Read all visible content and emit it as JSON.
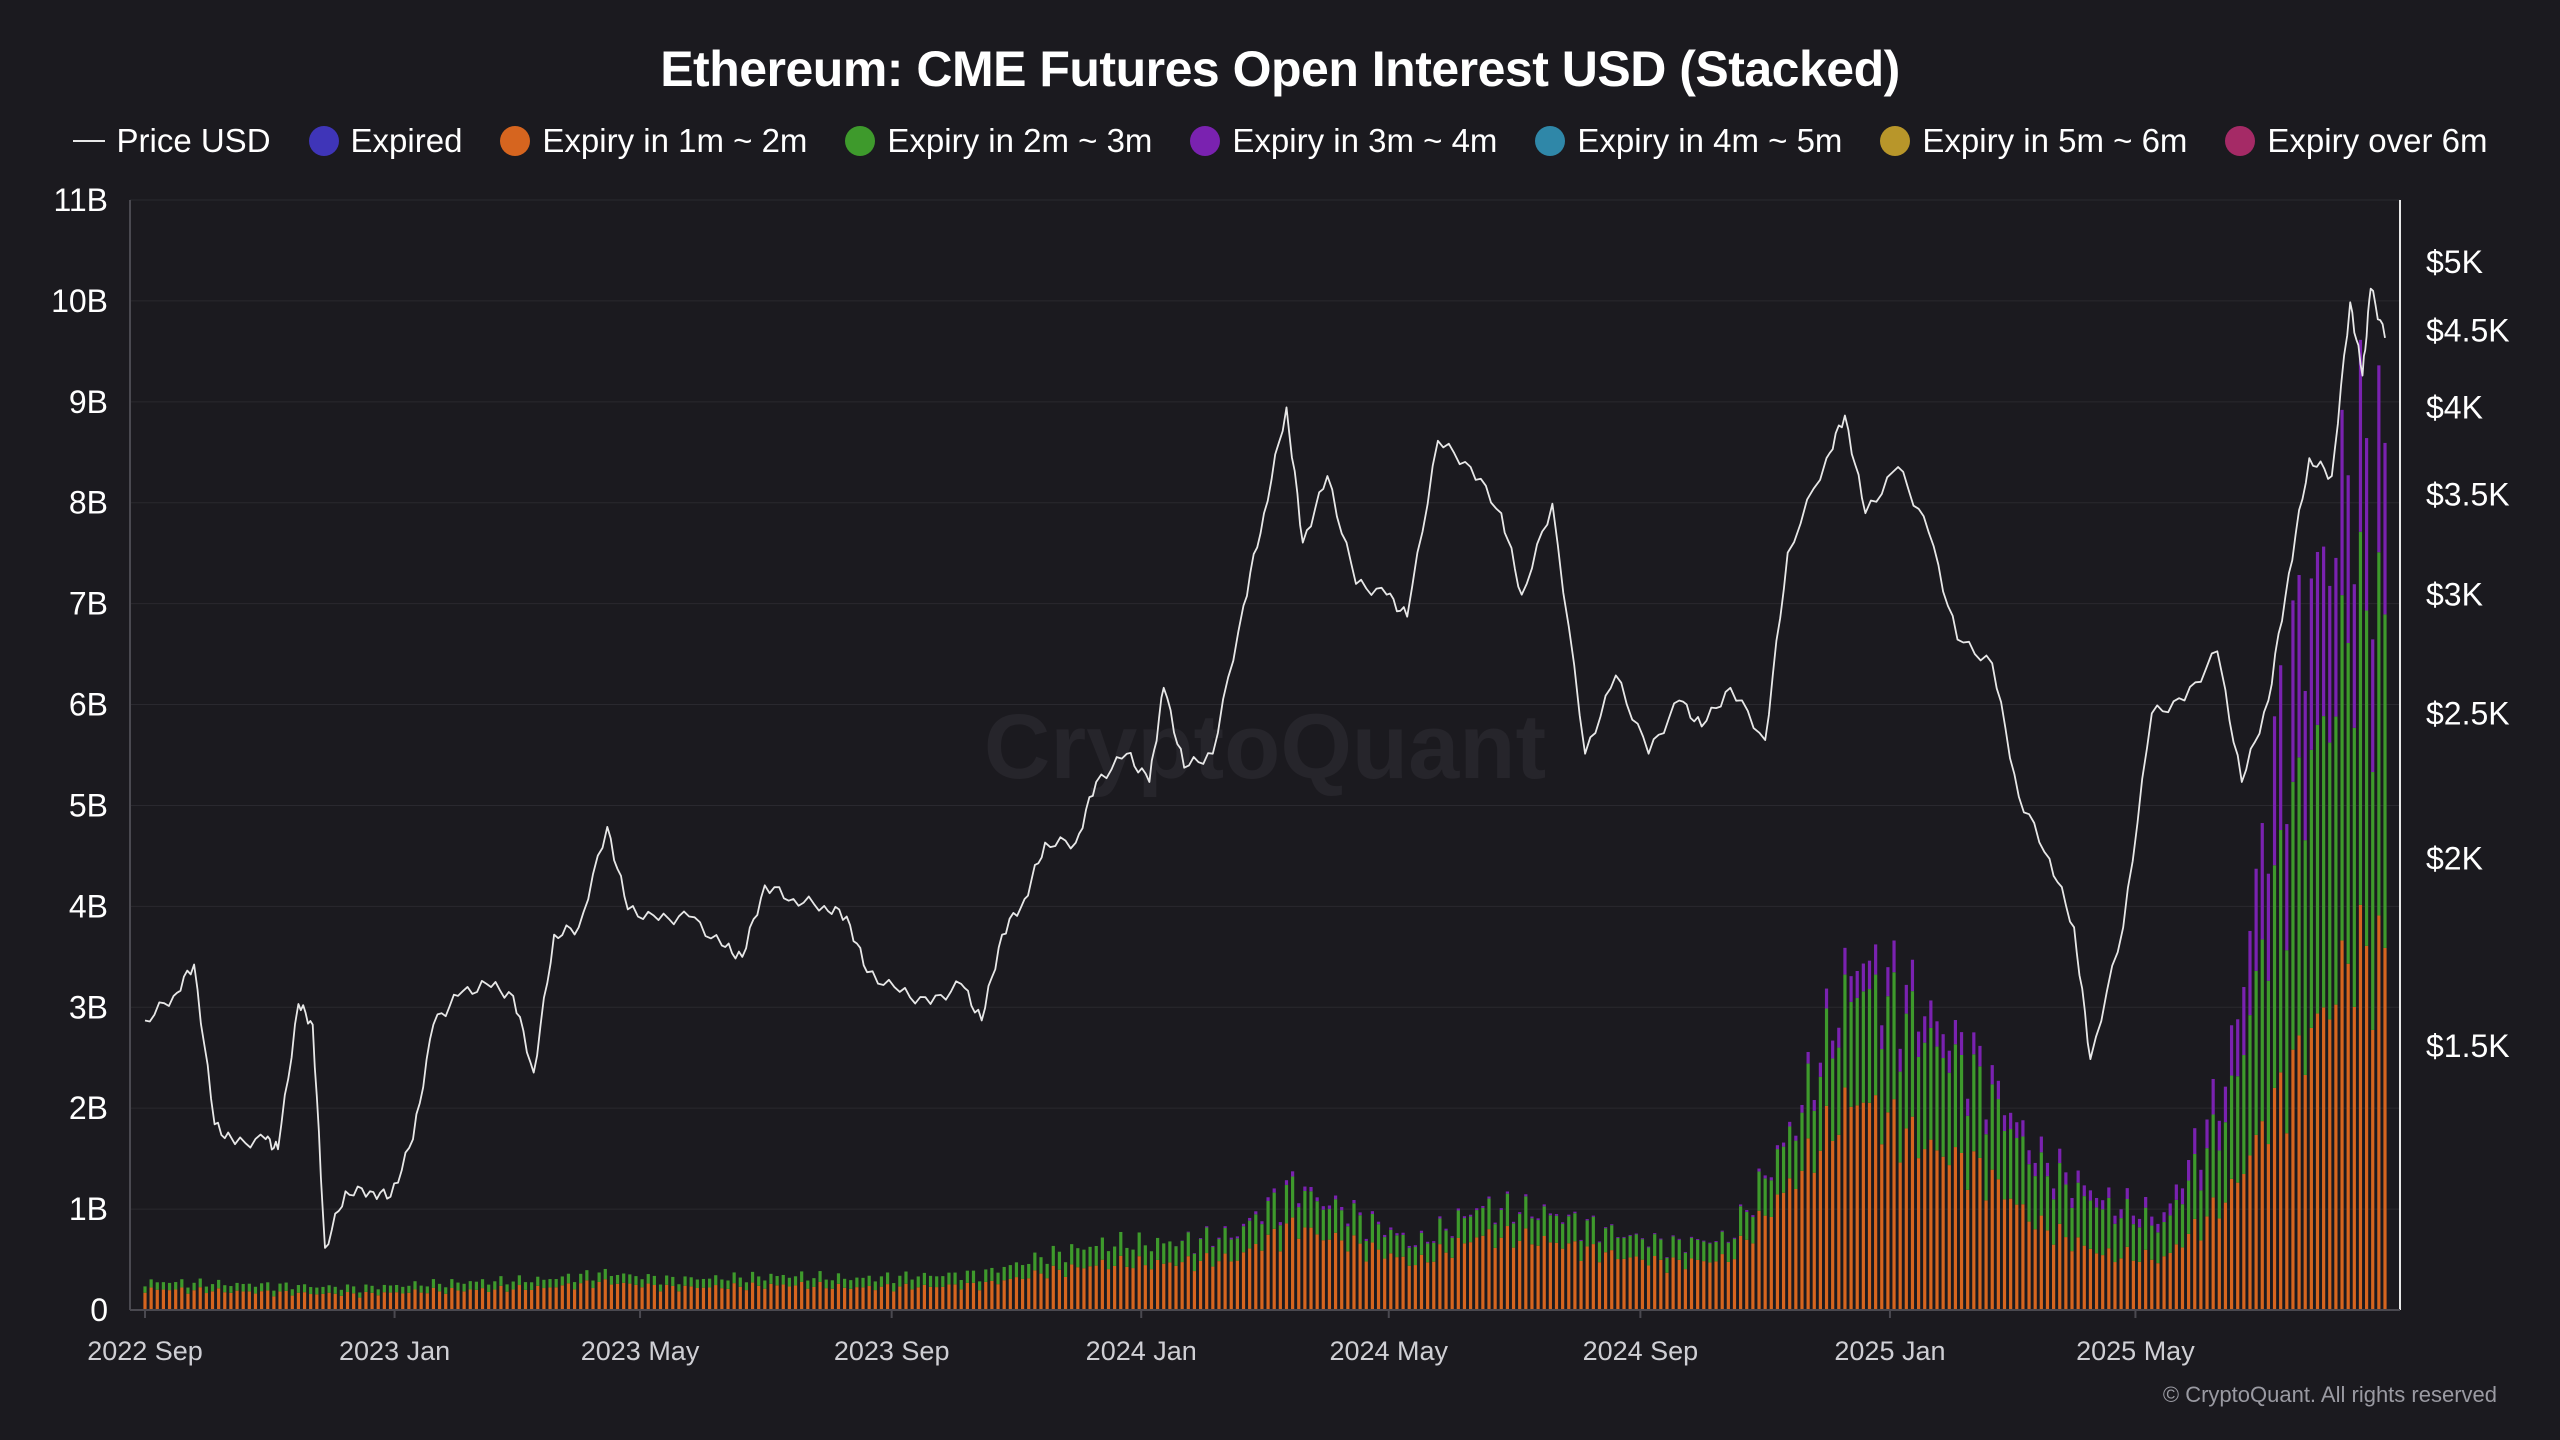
{
  "title": "Ethereum: CME Futures Open Interest USD (Stacked)",
  "legend": [
    {
      "label": "Price USD",
      "type": "line",
      "color": "#e8e8e8"
    },
    {
      "label": "Expired",
      "type": "dot",
      "color": "#3f35b8"
    },
    {
      "label": "Expiry in 1m ~ 2m",
      "type": "dot",
      "color": "#d6651f"
    },
    {
      "label": "Expiry in 2m ~ 3m",
      "type": "dot",
      "color": "#3e9a2c"
    },
    {
      "label": "Expiry in 3m ~ 4m",
      "type": "dot",
      "color": "#7a22b0"
    },
    {
      "label": "Expiry in 4m ~ 5m",
      "type": "dot",
      "color": "#2f87a8"
    },
    {
      "label": "Expiry in 5m ~ 6m",
      "type": "dot",
      "color": "#b8962a"
    },
    {
      "label": "Expiry over 6m",
      "type": "dot",
      "color": "#a52a66"
    }
  ],
  "watermark": "CryptoQuant",
  "copyright": "© CryptoQuant. All rights reserved",
  "chart_data": {
    "type": "bar",
    "stacked": true,
    "x_ticks": [
      "2022 Sep",
      "2023 Jan",
      "2023 May",
      "2023 Sep",
      "2024 Jan",
      "2024 May",
      "2024 Sep",
      "2025 Jan",
      "2025 May"
    ],
    "y_left_ticks": [
      "0",
      "1B",
      "2B",
      "3B",
      "4B",
      "5B",
      "6B",
      "7B",
      "8B",
      "9B",
      "10B",
      "11B"
    ],
    "y_left_range": [
      0,
      11000000000
    ],
    "y_right_ticks": [
      "$1.5K",
      "$2K",
      "$2.5K",
      "$3K",
      "$3.5K",
      "$4K",
      "$4.5K",
      "$5K"
    ],
    "y_right_values": [
      1500,
      2000,
      2500,
      3000,
      3500,
      4000,
      4500,
      5000
    ],
    "y_right_scale": "log",
    "x_range": [
      "2022-09-01",
      "2025-08-31"
    ],
    "grid": true,
    "legend_position": "top",
    "oi_stack": [
      {
        "date": "2022-09",
        "expired": 0.0,
        "m1_2": 0.22,
        "m2_3": 0.08,
        "m3_4": 0.0
      },
      {
        "date": "2022-10",
        "expired": 0.0,
        "m1_2": 0.2,
        "m2_3": 0.08,
        "m3_4": 0.0
      },
      {
        "date": "2022-11",
        "expired": 0.0,
        "m1_2": 0.18,
        "m2_3": 0.08,
        "m3_4": 0.0
      },
      {
        "date": "2022-12",
        "expired": 0.0,
        "m1_2": 0.17,
        "m2_3": 0.07,
        "m3_4": 0.0
      },
      {
        "date": "2023-01",
        "expired": 0.0,
        "m1_2": 0.2,
        "m2_3": 0.08,
        "m3_4": 0.0
      },
      {
        "date": "2023-02",
        "expired": 0.0,
        "m1_2": 0.22,
        "m2_3": 0.09,
        "m3_4": 0.0
      },
      {
        "date": "2023-03",
        "expired": 0.0,
        "m1_2": 0.24,
        "m2_3": 0.09,
        "m3_4": 0.0
      },
      {
        "date": "2023-04",
        "expired": 0.0,
        "m1_2": 0.3,
        "m2_3": 0.1,
        "m3_4": 0.0
      },
      {
        "date": "2023-05",
        "expired": 0.0,
        "m1_2": 0.24,
        "m2_3": 0.09,
        "m3_4": 0.0
      },
      {
        "date": "2023-06",
        "expired": 0.0,
        "m1_2": 0.25,
        "m2_3": 0.1,
        "m3_4": 0.0
      },
      {
        "date": "2023-07",
        "expired": 0.0,
        "m1_2": 0.27,
        "m2_3": 0.1,
        "m3_4": 0.0
      },
      {
        "date": "2023-08",
        "expired": 0.0,
        "m1_2": 0.24,
        "m2_3": 0.1,
        "m3_4": 0.0
      },
      {
        "date": "2023-09",
        "expired": 0.0,
        "m1_2": 0.25,
        "m2_3": 0.12,
        "m3_4": 0.0
      },
      {
        "date": "2023-10",
        "expired": 0.0,
        "m1_2": 0.27,
        "m2_3": 0.12,
        "m3_4": 0.0
      },
      {
        "date": "2023-11",
        "expired": 0.0,
        "m1_2": 0.4,
        "m2_3": 0.18,
        "m3_4": 0.0
      },
      {
        "date": "2023-12",
        "expired": 0.0,
        "m1_2": 0.5,
        "m2_3": 0.22,
        "m3_4": 0.0
      },
      {
        "date": "2024-01",
        "expired": 0.0,
        "m1_2": 0.5,
        "m2_3": 0.22,
        "m3_4": 0.0
      },
      {
        "date": "2024-02",
        "expired": 0.0,
        "m1_2": 0.55,
        "m2_3": 0.25,
        "m3_4": 0.02
      },
      {
        "date": "2024-03",
        "expired": 0.0,
        "m1_2": 0.9,
        "m2_3": 0.4,
        "m3_4": 0.05
      },
      {
        "date": "2024-04",
        "expired": 0.0,
        "m1_2": 0.7,
        "m2_3": 0.3,
        "m3_4": 0.03
      },
      {
        "date": "2024-05",
        "expired": 0.0,
        "m1_2": 0.5,
        "m2_3": 0.2,
        "m3_4": 0.02
      },
      {
        "date": "2024-06",
        "expired": 0.0,
        "m1_2": 0.8,
        "m2_3": 0.3,
        "m3_4": 0.02
      },
      {
        "date": "2024-07",
        "expired": 0.0,
        "m1_2": 0.75,
        "m2_3": 0.3,
        "m3_4": 0.02
      },
      {
        "date": "2024-08",
        "expired": 0.0,
        "m1_2": 0.6,
        "m2_3": 0.25,
        "m3_4": 0.01
      },
      {
        "date": "2024-09",
        "expired": 0.0,
        "m1_2": 0.5,
        "m2_3": 0.2,
        "m3_4": 0.01
      },
      {
        "date": "2024-10",
        "expired": 0.0,
        "m1_2": 0.55,
        "m2_3": 0.22,
        "m3_4": 0.01
      },
      {
        "date": "2024-11",
        "expired": 0.0,
        "m1_2": 1.4,
        "m2_3": 0.55,
        "m3_4": 0.05
      },
      {
        "date": "2024-12",
        "expired": 0.0,
        "m1_2": 2.3,
        "m2_3": 1.2,
        "m3_4": 0.3
      },
      {
        "date": "2025-01",
        "expired": 0.0,
        "m1_2": 1.8,
        "m2_3": 1.2,
        "m3_4": 0.3
      },
      {
        "date": "2025-02",
        "expired": 0.0,
        "m1_2": 1.5,
        "m2_3": 0.9,
        "m3_4": 0.2
      },
      {
        "date": "2025-03",
        "expired": 0.0,
        "m1_2": 0.9,
        "m2_3": 0.6,
        "m3_4": 0.15
      },
      {
        "date": "2025-04",
        "expired": 0.0,
        "m1_2": 0.6,
        "m2_3": 0.5,
        "m3_4": 0.1
      },
      {
        "date": "2025-05",
        "expired": 0.0,
        "m1_2": 0.55,
        "m2_3": 0.35,
        "m3_4": 0.1
      },
      {
        "date": "2025-06",
        "expired": 0.0,
        "m1_2": 1.2,
        "m2_3": 0.9,
        "m3_4": 0.4
      },
      {
        "date": "2025-07",
        "expired": 0.0,
        "m1_2": 2.5,
        "m2_3": 2.6,
        "m3_4": 1.8
      },
      {
        "date": "2025-08",
        "expired": 0.0,
        "m1_2": 3.8,
        "m2_3": 3.5,
        "m3_4": 1.8
      }
    ],
    "price_usd": [
      {
        "date": "2022-09-01",
        "value": 1560
      },
      {
        "date": "2022-09-15",
        "value": 1620
      },
      {
        "date": "2022-09-25",
        "value": 1700
      },
      {
        "date": "2022-10-05",
        "value": 1330
      },
      {
        "date": "2022-10-15",
        "value": 1290
      },
      {
        "date": "2022-10-30",
        "value": 1300
      },
      {
        "date": "2022-11-05",
        "value": 1280
      },
      {
        "date": "2022-11-15",
        "value": 1600
      },
      {
        "date": "2022-11-22",
        "value": 1550
      },
      {
        "date": "2022-11-28",
        "value": 1100
      },
      {
        "date": "2022-12-08",
        "value": 1200
      },
      {
        "date": "2022-12-20",
        "value": 1200
      },
      {
        "date": "2022-12-30",
        "value": 1190
      },
      {
        "date": "2023-01-10",
        "value": 1300
      },
      {
        "date": "2023-01-20",
        "value": 1550
      },
      {
        "date": "2023-02-01",
        "value": 1620
      },
      {
        "date": "2023-02-15",
        "value": 1650
      },
      {
        "date": "2023-02-28",
        "value": 1620
      },
      {
        "date": "2023-03-10",
        "value": 1440
      },
      {
        "date": "2023-03-20",
        "value": 1780
      },
      {
        "date": "2023-04-01",
        "value": 1800
      },
      {
        "date": "2023-04-15",
        "value": 2100
      },
      {
        "date": "2023-04-25",
        "value": 1850
      },
      {
        "date": "2023-05-10",
        "value": 1820
      },
      {
        "date": "2023-05-25",
        "value": 1830
      },
      {
        "date": "2023-06-10",
        "value": 1750
      },
      {
        "date": "2023-06-20",
        "value": 1720
      },
      {
        "date": "2023-07-01",
        "value": 1920
      },
      {
        "date": "2023-07-15",
        "value": 1880
      },
      {
        "date": "2023-07-30",
        "value": 1860
      },
      {
        "date": "2023-08-10",
        "value": 1830
      },
      {
        "date": "2023-08-20",
        "value": 1680
      },
      {
        "date": "2023-09-05",
        "value": 1630
      },
      {
        "date": "2023-09-20",
        "value": 1600
      },
      {
        "date": "2023-10-05",
        "value": 1650
      },
      {
        "date": "2023-10-15",
        "value": 1560
      },
      {
        "date": "2023-10-25",
        "value": 1780
      },
      {
        "date": "2023-11-05",
        "value": 1880
      },
      {
        "date": "2023-11-15",
        "value": 2050
      },
      {
        "date": "2023-11-30",
        "value": 2050
      },
      {
        "date": "2023-12-10",
        "value": 2250
      },
      {
        "date": "2023-12-25",
        "value": 2350
      },
      {
        "date": "2024-01-05",
        "value": 2250
      },
      {
        "date": "2024-01-12",
        "value": 2600
      },
      {
        "date": "2024-01-22",
        "value": 2300
      },
      {
        "date": "2024-02-05",
        "value": 2350
      },
      {
        "date": "2024-02-20",
        "value": 2950
      },
      {
        "date": "2024-03-01",
        "value": 3400
      },
      {
        "date": "2024-03-12",
        "value": 4000
      },
      {
        "date": "2024-03-20",
        "value": 3250
      },
      {
        "date": "2024-04-01",
        "value": 3600
      },
      {
        "date": "2024-04-15",
        "value": 3050
      },
      {
        "date": "2024-04-30",
        "value": 3000
      },
      {
        "date": "2024-05-10",
        "value": 2900
      },
      {
        "date": "2024-05-25",
        "value": 3800
      },
      {
        "date": "2024-06-10",
        "value": 3650
      },
      {
        "date": "2024-06-25",
        "value": 3400
      },
      {
        "date": "2024-07-05",
        "value": 3000
      },
      {
        "date": "2024-07-20",
        "value": 3450
      },
      {
        "date": "2024-08-05",
        "value": 2350
      },
      {
        "date": "2024-08-20",
        "value": 2650
      },
      {
        "date": "2024-09-05",
        "value": 2350
      },
      {
        "date": "2024-09-20",
        "value": 2550
      },
      {
        "date": "2024-10-01",
        "value": 2450
      },
      {
        "date": "2024-10-15",
        "value": 2600
      },
      {
        "date": "2024-11-01",
        "value": 2400
      },
      {
        "date": "2024-11-12",
        "value": 3200
      },
      {
        "date": "2024-12-01",
        "value": 3700
      },
      {
        "date": "2024-12-10",
        "value": 3950
      },
      {
        "date": "2024-12-20",
        "value": 3400
      },
      {
        "date": "2025-01-05",
        "value": 3650
      },
      {
        "date": "2025-01-20",
        "value": 3300
      },
      {
        "date": "2025-02-03",
        "value": 2800
      },
      {
        "date": "2025-02-20",
        "value": 2700
      },
      {
        "date": "2025-03-05",
        "value": 2200
      },
      {
        "date": "2025-03-20",
        "value": 2000
      },
      {
        "date": "2025-04-01",
        "value": 1800
      },
      {
        "date": "2025-04-09",
        "value": 1470
      },
      {
        "date": "2025-04-25",
        "value": 1800
      },
      {
        "date": "2025-05-09",
        "value": 2500
      },
      {
        "date": "2025-05-25",
        "value": 2550
      },
      {
        "date": "2025-06-10",
        "value": 2750
      },
      {
        "date": "2025-06-22",
        "value": 2250
      },
      {
        "date": "2025-07-05",
        "value": 2550
      },
      {
        "date": "2025-07-15",
        "value": 3100
      },
      {
        "date": "2025-07-25",
        "value": 3700
      },
      {
        "date": "2025-08-05",
        "value": 3600
      },
      {
        "date": "2025-08-14",
        "value": 4700
      },
      {
        "date": "2025-08-20",
        "value": 4200
      },
      {
        "date": "2025-08-24",
        "value": 4800
      },
      {
        "date": "2025-08-31",
        "value": 4450
      }
    ]
  }
}
